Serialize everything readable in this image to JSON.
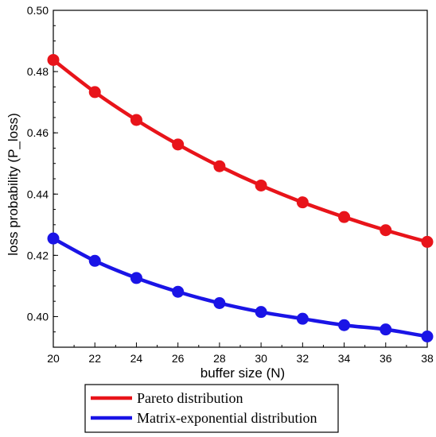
{
  "chart_data": {
    "type": "line",
    "title": "",
    "xlabel": "buffer size (N)",
    "ylabel": "loss probability (P_loss)",
    "xlim": [
      20,
      38
    ],
    "ylim": [
      0.39,
      0.5
    ],
    "x": [
      20,
      22,
      24,
      26,
      28,
      30,
      32,
      34,
      36,
      38
    ],
    "x_tick_labels": [
      "20",
      "22",
      "24",
      "26",
      "28",
      "30",
      "32",
      "34",
      "36",
      "38"
    ],
    "y_ticks": [
      0.4,
      0.42,
      0.44,
      0.46,
      0.48,
      0.5
    ],
    "y_tick_labels": [
      "0.40",
      "0.42",
      "0.44",
      "0.46",
      "0.48",
      "0.50"
    ],
    "grid": false,
    "legend_position": "bottom",
    "series": [
      {
        "name": "Pareto distribution",
        "color": "#e8141a",
        "values": [
          0.4838,
          0.4733,
          0.4642,
          0.4562,
          0.4491,
          0.4428,
          0.4373,
          0.4325,
          0.4282,
          0.4244
        ]
      },
      {
        "name": "Matrix-exponential distribution",
        "color": "#1a14e6",
        "values": [
          0.4255,
          0.4182,
          0.4126,
          0.4081,
          0.4044,
          0.4015,
          0.3993,
          0.3972,
          0.3958,
          0.3935
        ]
      }
    ]
  }
}
